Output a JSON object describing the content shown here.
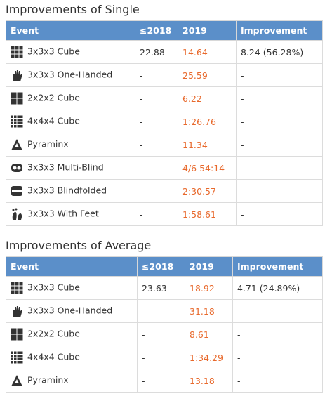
{
  "sections": [
    {
      "title": "Improvements of Single",
      "table": {
        "header": [
          "Event",
          "≤2018",
          "2019",
          "Improvement"
        ],
        "rows": [
          [
            "3x3x3 Cube",
            "22.88",
            "14.64",
            "8.24 (56.28%)"
          ],
          [
            "3x3x3 One-Handed",
            "-",
            "25.59",
            "-"
          ],
          [
            "2x2x2 Cube",
            "-",
            "6.22",
            "-"
          ],
          [
            "4x4x4 Cube",
            "-",
            "1:26.76",
            "-"
          ],
          [
            "Pyraminx",
            "-",
            "11.34",
            "-"
          ],
          [
            "3x3x3 Multi-Blind",
            "-",
            "4/6 54:14",
            "-"
          ],
          [
            "3x3x3 Blindfolded",
            "-",
            "2:30.57",
            "-"
          ],
          [
            "3x3x3 With Feet",
            "-",
            "1:58.61",
            "-"
          ]
        ]
      }
    },
    {
      "title": "Improvements of Average",
      "table": {
        "header": [
          "Event",
          "≤2018",
          "2019",
          "Improvement"
        ],
        "rows": [
          [
            "3x3x3 Cube",
            "23.63",
            "18.92",
            "4.71 (24.89%)"
          ],
          [
            "3x3x3 One-Handed",
            "-",
            "31.18",
            "-"
          ],
          [
            "2x2x2 Cube",
            "-",
            "8.61",
            "-"
          ],
          [
            "4x4x4 Cube",
            "-",
            "1:34.29",
            "-"
          ],
          [
            "Pyraminx",
            "-",
            "13.18",
            "-"
          ]
        ]
      }
    }
  ]
}
